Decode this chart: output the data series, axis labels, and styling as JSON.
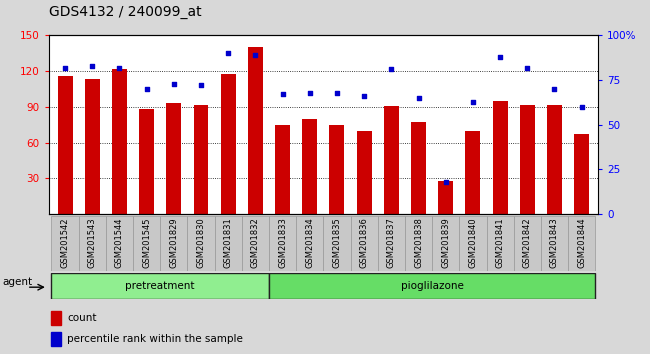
{
  "title": "GDS4132 / 240099_at",
  "samples": [
    "GSM201542",
    "GSM201543",
    "GSM201544",
    "GSM201545",
    "GSM201829",
    "GSM201830",
    "GSM201831",
    "GSM201832",
    "GSM201833",
    "GSM201834",
    "GSM201835",
    "GSM201836",
    "GSM201837",
    "GSM201838",
    "GSM201839",
    "GSM201840",
    "GSM201841",
    "GSM201842",
    "GSM201843",
    "GSM201844"
  ],
  "count_values": [
    116,
    113,
    122,
    88,
    93,
    92,
    118,
    140,
    75,
    80,
    75,
    70,
    91,
    77,
    28,
    70,
    95,
    92,
    92,
    67
  ],
  "percentile_values": [
    82,
    83,
    82,
    70,
    73,
    72,
    90,
    89,
    67,
    68,
    68,
    66,
    81,
    65,
    18,
    63,
    88,
    82,
    70,
    60
  ],
  "bar_color": "#CC0000",
  "dot_color": "#0000CC",
  "ylim_left": [
    0,
    150
  ],
  "ylim_right": [
    0,
    100
  ],
  "yticks_left": [
    30,
    60,
    90,
    120,
    150
  ],
  "yticks_right": [
    0,
    25,
    50,
    75,
    100
  ],
  "yticklabels_right": [
    "0",
    "25",
    "50",
    "75",
    "100%"
  ],
  "pretreat_count": 8,
  "pretreat_label": "pretreatment",
  "piog_label": "pioglilazone",
  "pretreat_color": "#90EE90",
  "piog_color": "#66DD66",
  "background_color": "#D8D8D8",
  "plot_bg_color": "#FFFFFF",
  "cell_bg_color": "#C8C8C8",
  "legend_count_label": "count",
  "legend_percentile_label": "percentile rank within the sample",
  "agent_label": "agent",
  "title_fontsize": 10,
  "bar_width": 0.55
}
